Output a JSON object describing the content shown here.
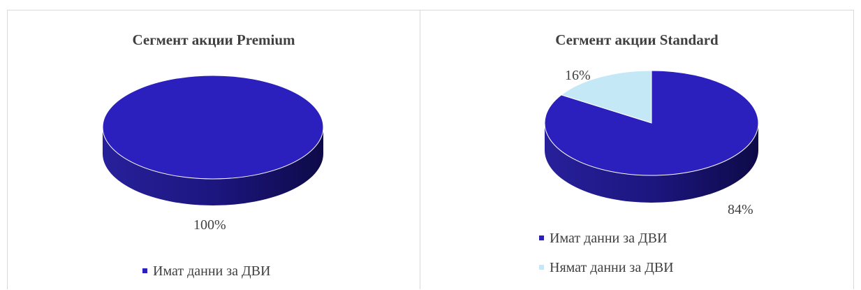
{
  "charts": [
    {
      "title": "Сегмент акции Premium",
      "labels": [
        "100%"
      ],
      "legend": [
        {
          "label": "Имат данни за ДВИ",
          "color": "#2b1fbd"
        }
      ]
    },
    {
      "title": "Сегмент акции Standard",
      "labels": [
        "84%",
        "16%"
      ],
      "legend": [
        {
          "label": "Имат данни за ДВИ",
          "color": "#2b1fbd"
        },
        {
          "label": "Нямат данни за ДВИ",
          "color": "#c5e8f7"
        }
      ]
    }
  ],
  "chart_data": [
    {
      "type": "pie",
      "title": "Сегмент акции Premium",
      "categories": [
        "Имат данни за ДВИ"
      ],
      "values": [
        100
      ],
      "colors": [
        "#2b1fbd"
      ],
      "legend": "bottom"
    },
    {
      "type": "pie",
      "title": "Сегмент акции Standard",
      "categories": [
        "Имат данни за ДВИ",
        "Нямат данни за ДВИ"
      ],
      "values": [
        84,
        16
      ],
      "colors": [
        "#2b1fbd",
        "#c5e8f7"
      ],
      "legend": "bottom"
    }
  ]
}
